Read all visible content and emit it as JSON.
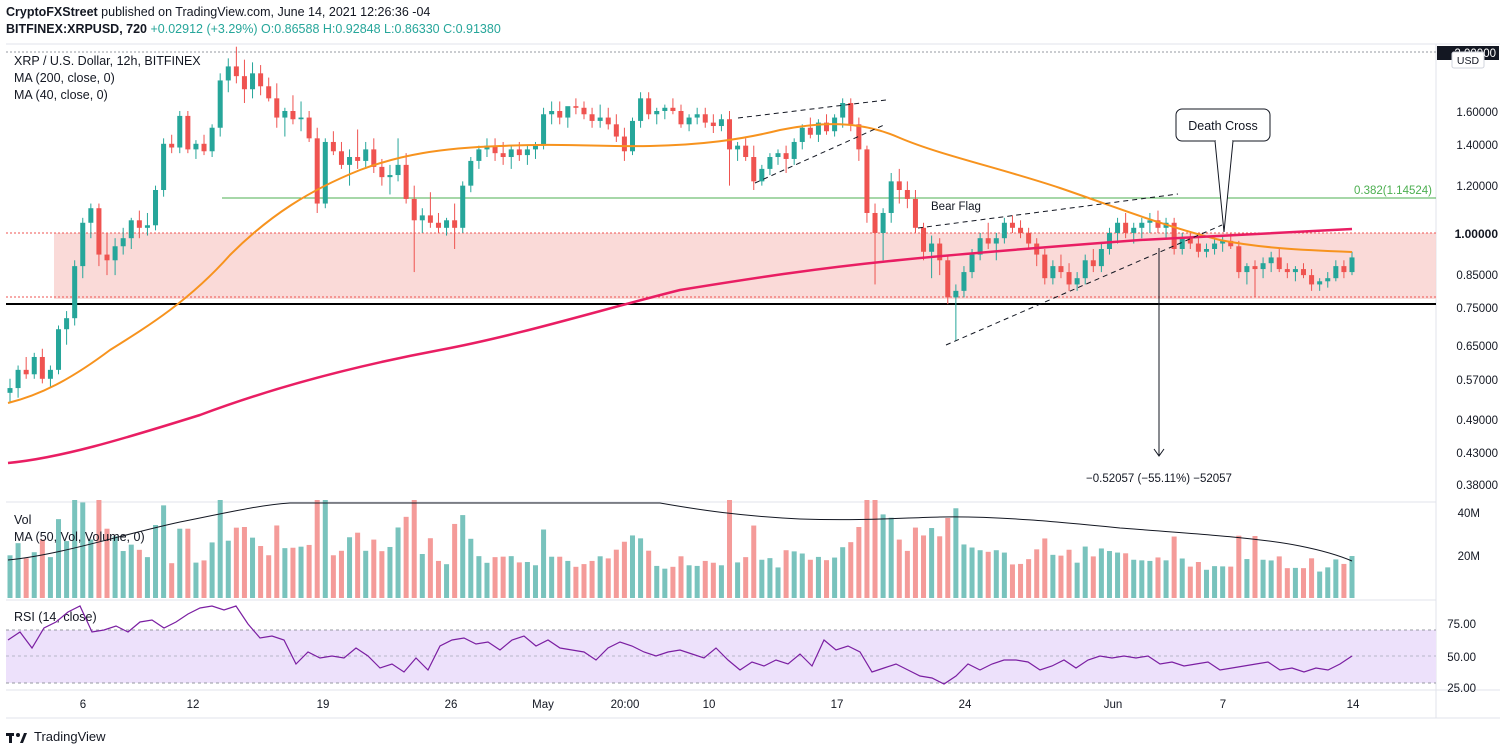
{
  "header": {
    "publisher": "CryptoFXStreet",
    "published_text": "published on TradingView.com, June 14, 2021 12:26:36 -04",
    "symbol": "BITFINEX:XRPUSD, 720",
    "change": "+0.02912 (+3.29%)",
    "ohlc": "O:0.86588 H:0.92848 L:0.86330 C:0.91380"
  },
  "legend": {
    "title": "XRP / U.S. Dollar, 12h, BITFINEX",
    "ma200": "MA (200, close, 0)",
    "ma40": "MA (40, close, 0)",
    "vol": "Vol",
    "vol_ma": "MA (50, Vol, Volume, 0)",
    "rsi": "RSI (14, close)"
  },
  "annotations": {
    "bear_flag": "Bear Flag",
    "death_cross": "Death Cross",
    "fib": "0.382(1.14524)",
    "measure": "−0.52057 (−55.11%) −52057"
  },
  "price_axis": {
    "currency": "USD",
    "labels": [
      "1.60000",
      "1.40000",
      "1.20000",
      "1.00000",
      "0.85000",
      "0.75000",
      "0.65000",
      "0.57000",
      "0.49000",
      "0.43000",
      "0.38000"
    ],
    "top_label": "2.00000"
  },
  "volume_axis": {
    "labels": [
      "40M",
      "20M"
    ]
  },
  "rsi_axis": {
    "labels": [
      "75.00",
      "50.00",
      "25.00"
    ]
  },
  "time_axis": {
    "labels": [
      "6",
      "12",
      "19",
      "26",
      "May",
      "20:00",
      "10",
      "17",
      "24",
      "Jun",
      "7",
      "14"
    ]
  },
  "footer": {
    "brand": "TradingView"
  },
  "colors": {
    "up": "#26a69a",
    "down": "#ef5350",
    "vol_up": "#79c3bd",
    "vol_down": "#f49b99",
    "ma40": "#f7931e",
    "ma200": "#e91e63",
    "zone": "#f9d3d1",
    "rsi_band": "#ede1fb",
    "rsi_line": "#7b1fa2",
    "fib": "#4caf50"
  },
  "chart_data": {
    "type": "candlestick",
    "title": "XRP / U.S. Dollar, 12h, BITFINEX",
    "scale": "log",
    "ylim": [
      0.36,
      2.0
    ],
    "levels": {
      "resistance": 1.0,
      "support": 0.76,
      "fib_0382": 1.14524,
      "zone_low": 0.78,
      "zone_high": 1.0
    },
    "candles": [
      [
        0.54,
        0.57,
        0.52,
        0.55
      ],
      [
        0.55,
        0.6,
        0.53,
        0.59
      ],
      [
        0.59,
        0.62,
        0.57,
        0.58
      ],
      [
        0.58,
        0.63,
        0.57,
        0.62
      ],
      [
        0.62,
        0.64,
        0.56,
        0.57
      ],
      [
        0.57,
        0.6,
        0.55,
        0.59
      ],
      [
        0.59,
        0.7,
        0.58,
        0.69
      ],
      [
        0.69,
        0.74,
        0.65,
        0.72
      ],
      [
        0.72,
        0.9,
        0.7,
        0.88
      ],
      [
        0.88,
        1.06,
        0.84,
        1.04
      ],
      [
        1.04,
        1.12,
        0.98,
        1.1
      ],
      [
        1.1,
        1.12,
        0.88,
        0.92
      ],
      [
        0.92,
        1.0,
        0.85,
        0.9
      ],
      [
        0.9,
        0.98,
        0.85,
        0.95
      ],
      [
        0.95,
        1.02,
        0.92,
        0.98
      ],
      [
        0.98,
        1.06,
        0.94,
        1.05
      ],
      [
        1.05,
        1.09,
        0.98,
        1.02
      ],
      [
        1.02,
        1.08,
        0.99,
        1.03
      ],
      [
        1.03,
        1.2,
        1.01,
        1.18
      ],
      [
        1.18,
        1.44,
        1.15,
        1.41
      ],
      [
        1.41,
        1.46,
        1.36,
        1.39
      ],
      [
        1.39,
        1.6,
        1.36,
        1.57
      ],
      [
        1.57,
        1.6,
        1.36,
        1.38
      ],
      [
        1.38,
        1.43,
        1.33,
        1.41
      ],
      [
        1.41,
        1.46,
        1.35,
        1.37
      ],
      [
        1.37,
        1.52,
        1.34,
        1.5
      ],
      [
        1.5,
        1.85,
        1.45,
        1.8
      ],
      [
        1.8,
        1.96,
        1.72,
        1.9
      ],
      [
        1.9,
        2.1,
        1.78,
        1.83
      ],
      [
        1.83,
        1.95,
        1.65,
        1.74
      ],
      [
        1.74,
        1.93,
        1.68,
        1.85
      ],
      [
        1.85,
        1.91,
        1.7,
        1.76
      ],
      [
        1.76,
        1.82,
        1.66,
        1.68
      ],
      [
        1.68,
        1.78,
        1.5,
        1.56
      ],
      [
        1.56,
        1.62,
        1.45,
        1.6
      ],
      [
        1.6,
        1.7,
        1.52,
        1.55
      ],
      [
        1.55,
        1.66,
        1.48,
        1.56
      ],
      [
        1.56,
        1.6,
        1.42,
        1.44
      ],
      [
        1.44,
        1.5,
        1.08,
        1.12
      ],
      [
        1.12,
        1.44,
        1.1,
        1.42
      ],
      [
        1.42,
        1.48,
        1.35,
        1.37
      ],
      [
        1.37,
        1.42,
        1.28,
        1.3
      ],
      [
        1.3,
        1.38,
        1.2,
        1.34
      ],
      [
        1.34,
        1.49,
        1.28,
        1.32
      ],
      [
        1.32,
        1.42,
        1.28,
        1.38
      ],
      [
        1.38,
        1.44,
        1.26,
        1.29
      ],
      [
        1.29,
        1.33,
        1.2,
        1.24
      ],
      [
        1.24,
        1.3,
        1.16,
        1.25
      ],
      [
        1.25,
        1.44,
        1.22,
        1.3
      ],
      [
        1.3,
        1.36,
        1.12,
        1.14
      ],
      [
        1.14,
        1.2,
        0.86,
        1.05
      ],
      [
        1.05,
        1.1,
        1.0,
        1.07
      ],
      [
        1.07,
        1.17,
        1.02,
        1.04
      ],
      [
        1.04,
        1.08,
        1.0,
        1.02
      ],
      [
        1.02,
        1.06,
        0.99,
        1.05
      ],
      [
        1.05,
        1.12,
        0.94,
        1.02
      ],
      [
        1.02,
        1.22,
        1.0,
        1.2
      ],
      [
        1.2,
        1.34,
        1.17,
        1.32
      ],
      [
        1.32,
        1.4,
        1.28,
        1.38
      ],
      [
        1.38,
        1.44,
        1.34,
        1.4
      ],
      [
        1.4,
        1.44,
        1.32,
        1.36
      ],
      [
        1.36,
        1.42,
        1.3,
        1.34
      ],
      [
        1.34,
        1.4,
        1.28,
        1.38
      ],
      [
        1.38,
        1.42,
        1.32,
        1.35
      ],
      [
        1.35,
        1.4,
        1.3,
        1.38
      ],
      [
        1.38,
        1.42,
        1.33,
        1.4
      ],
      [
        1.4,
        1.62,
        1.38,
        1.58
      ],
      [
        1.58,
        1.66,
        1.52,
        1.6
      ],
      [
        1.6,
        1.66,
        1.52,
        1.56
      ],
      [
        1.56,
        1.62,
        1.5,
        1.63
      ],
      [
        1.63,
        1.68,
        1.58,
        1.62
      ],
      [
        1.62,
        1.66,
        1.55,
        1.58
      ],
      [
        1.58,
        1.62,
        1.5,
        1.54
      ],
      [
        1.54,
        1.64,
        1.5,
        1.56
      ],
      [
        1.56,
        1.62,
        1.49,
        1.52
      ],
      [
        1.52,
        1.58,
        1.42,
        1.45
      ],
      [
        1.45,
        1.5,
        1.32,
        1.37
      ],
      [
        1.37,
        1.56,
        1.35,
        1.54
      ],
      [
        1.54,
        1.72,
        1.5,
        1.68
      ],
      [
        1.68,
        1.72,
        1.55,
        1.58
      ],
      [
        1.58,
        1.62,
        1.52,
        1.6
      ],
      [
        1.6,
        1.64,
        1.55,
        1.62
      ],
      [
        1.62,
        1.68,
        1.58,
        1.6
      ],
      [
        1.6,
        1.64,
        1.5,
        1.52
      ],
      [
        1.52,
        1.58,
        1.48,
        1.56
      ],
      [
        1.56,
        1.62,
        1.52,
        1.58
      ],
      [
        1.58,
        1.62,
        1.5,
        1.53
      ],
      [
        1.53,
        1.58,
        1.47,
        1.51
      ],
      [
        1.51,
        1.58,
        1.48,
        1.55
      ],
      [
        1.55,
        1.6,
        1.2,
        1.38
      ],
      [
        1.38,
        1.42,
        1.32,
        1.4
      ],
      [
        1.4,
        1.44,
        1.32,
        1.34
      ],
      [
        1.34,
        1.4,
        1.18,
        1.22
      ],
      [
        1.22,
        1.3,
        1.2,
        1.28
      ],
      [
        1.28,
        1.36,
        1.25,
        1.34
      ],
      [
        1.34,
        1.38,
        1.3,
        1.36
      ],
      [
        1.36,
        1.4,
        1.26,
        1.33
      ],
      [
        1.33,
        1.44,
        1.3,
        1.42
      ],
      [
        1.42,
        1.52,
        1.38,
        1.5
      ],
      [
        1.5,
        1.56,
        1.44,
        1.46
      ],
      [
        1.46,
        1.55,
        1.42,
        1.53
      ],
      [
        1.53,
        1.58,
        1.46,
        1.48
      ],
      [
        1.48,
        1.58,
        1.45,
        1.56
      ],
      [
        1.56,
        1.68,
        1.5,
        1.65
      ],
      [
        1.65,
        1.68,
        1.48,
        1.52
      ],
      [
        1.52,
        1.56,
        1.32,
        1.38
      ],
      [
        1.38,
        1.4,
        1.04,
        1.08
      ],
      [
        1.08,
        1.12,
        0.82,
        1.0
      ],
      [
        1.0,
        1.1,
        0.9,
        1.08
      ],
      [
        1.08,
        1.26,
        1.04,
        1.22
      ],
      [
        1.22,
        1.28,
        1.12,
        1.18
      ],
      [
        1.18,
        1.22,
        1.1,
        1.14
      ],
      [
        1.14,
        1.18,
        1.0,
        1.02
      ],
      [
        1.02,
        1.04,
        0.9,
        0.93
      ],
      [
        0.93,
        0.99,
        0.84,
        0.96
      ],
      [
        0.96,
        0.98,
        0.85,
        0.9
      ],
      [
        0.9,
        0.92,
        0.76,
        0.78
      ],
      [
        0.78,
        0.82,
        0.66,
        0.8
      ],
      [
        0.8,
        0.88,
        0.78,
        0.86
      ],
      [
        0.86,
        0.94,
        0.84,
        0.92
      ],
      [
        0.92,
        1.0,
        0.9,
        0.98
      ],
      [
        0.98,
        1.04,
        0.94,
        0.96
      ],
      [
        0.96,
        1.0,
        0.9,
        0.98
      ],
      [
        0.98,
        1.06,
        0.96,
        1.04
      ],
      [
        1.04,
        1.07,
        1.0,
        1.02
      ],
      [
        1.02,
        1.05,
        0.98,
        1.0
      ],
      [
        1.0,
        1.02,
        0.94,
        0.96
      ],
      [
        0.96,
        0.98,
        0.88,
        0.92
      ],
      [
        0.92,
        0.94,
        0.82,
        0.84
      ],
      [
        0.84,
        0.9,
        0.82,
        0.88
      ],
      [
        0.88,
        0.92,
        0.84,
        0.86
      ],
      [
        0.86,
        0.89,
        0.8,
        0.82
      ],
      [
        0.82,
        0.86,
        0.8,
        0.84
      ],
      [
        0.84,
        0.92,
        0.82,
        0.9
      ],
      [
        0.9,
        0.94,
        0.86,
        0.88
      ],
      [
        0.88,
        0.96,
        0.86,
        0.94
      ],
      [
        0.94,
        1.02,
        0.92,
        1.0
      ],
      [
        1.0,
        1.06,
        0.96,
        1.04
      ],
      [
        1.04,
        1.08,
        0.98,
        1.0
      ],
      [
        1.0,
        1.04,
        0.96,
        1.02
      ],
      [
        1.02,
        1.06,
        0.98,
        1.04
      ],
      [
        1.04,
        1.08,
        1.0,
        1.05
      ],
      [
        1.05,
        1.09,
        1.0,
        1.02
      ],
      [
        1.02,
        1.06,
        0.98,
        1.04
      ],
      [
        1.04,
        1.06,
        0.92,
        0.94
      ],
      [
        0.94,
        1.0,
        0.92,
        0.98
      ],
      [
        0.98,
        1.0,
        0.94,
        0.96
      ],
      [
        0.96,
        0.98,
        0.91,
        0.93
      ],
      [
        0.93,
        0.96,
        0.91,
        0.94
      ],
      [
        0.94,
        0.98,
        0.92,
        0.96
      ],
      [
        0.96,
        0.99,
        0.93,
        0.97
      ],
      [
        0.97,
        1.0,
        0.94,
        0.95
      ],
      [
        0.95,
        0.97,
        0.84,
        0.86
      ],
      [
        0.86,
        0.89,
        0.82,
        0.88
      ],
      [
        0.88,
        0.9,
        0.78,
        0.87
      ],
      [
        0.87,
        0.91,
        0.84,
        0.89
      ],
      [
        0.89,
        0.93,
        0.86,
        0.91
      ],
      [
        0.91,
        0.94,
        0.86,
        0.87
      ],
      [
        0.87,
        0.89,
        0.84,
        0.86
      ],
      [
        0.86,
        0.88,
        0.83,
        0.87
      ],
      [
        0.87,
        0.89,
        0.84,
        0.85
      ],
      [
        0.85,
        0.87,
        0.8,
        0.82
      ],
      [
        0.82,
        0.84,
        0.8,
        0.83
      ],
      [
        0.83,
        0.86,
        0.81,
        0.84
      ],
      [
        0.84,
        0.9,
        0.83,
        0.88
      ],
      [
        0.88,
        0.9,
        0.84,
        0.86
      ],
      [
        0.86,
        0.93,
        0.85,
        0.91
      ]
    ],
    "volume_max": 40000000
  }
}
